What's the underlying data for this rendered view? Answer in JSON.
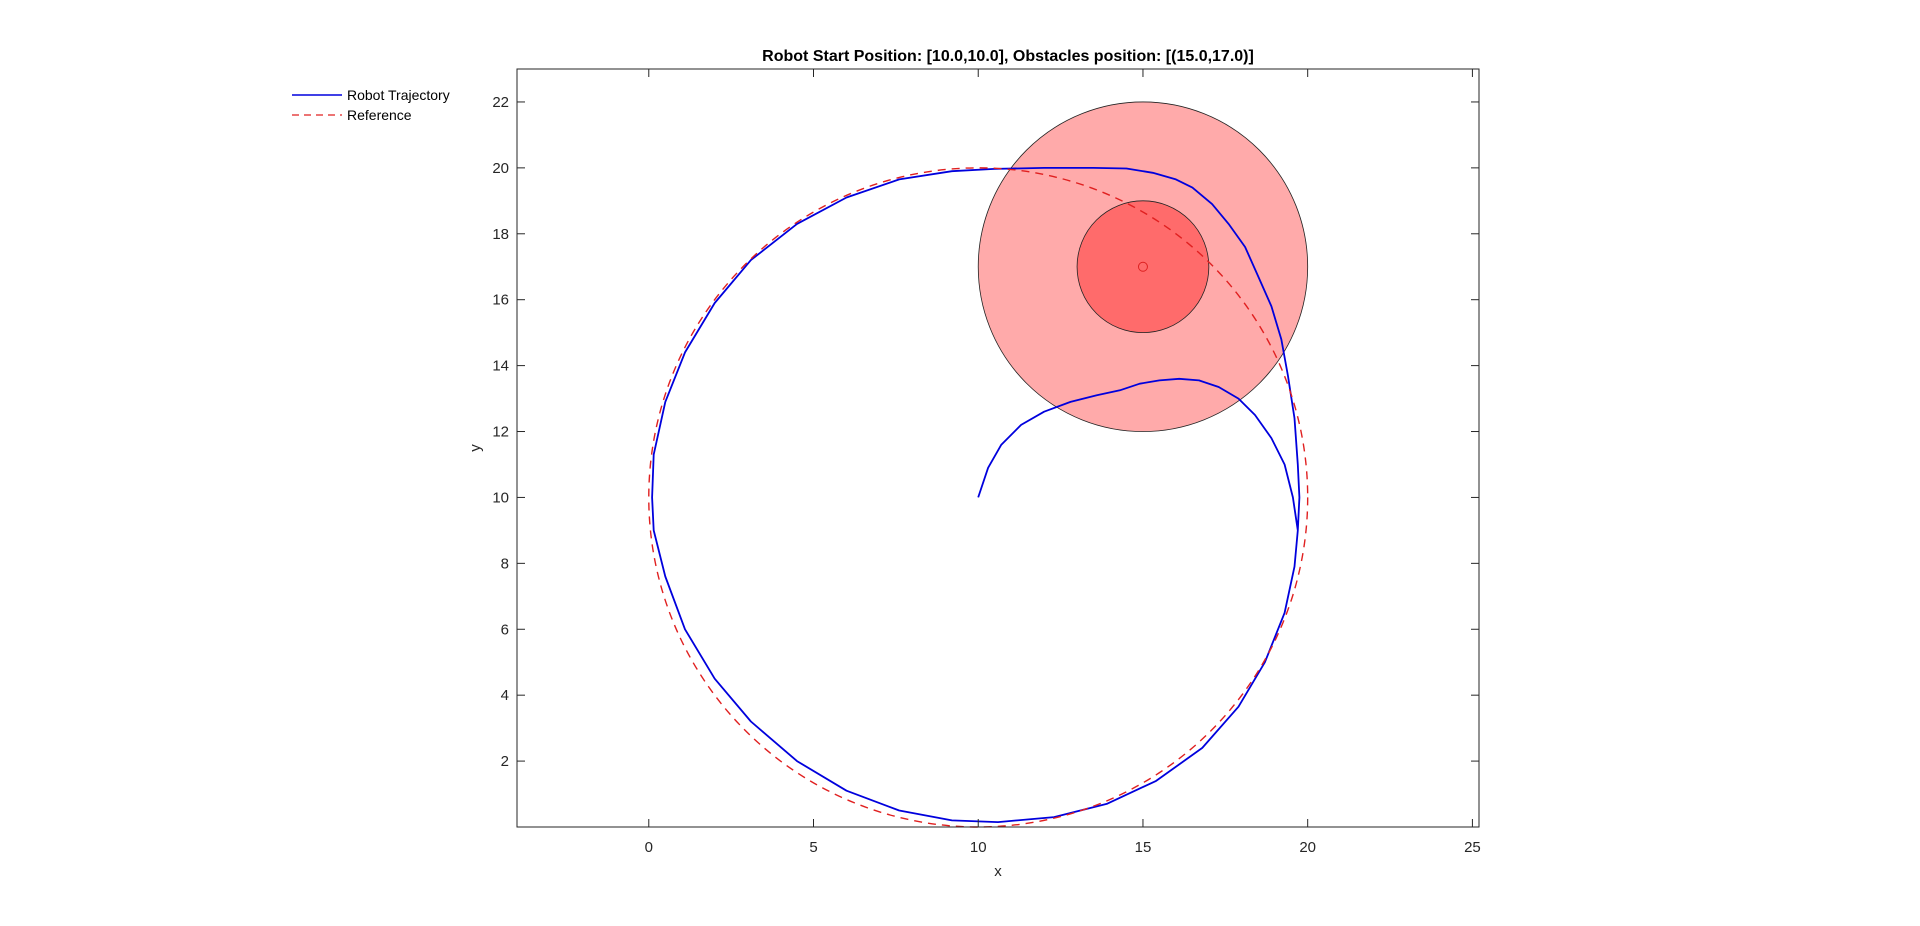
{
  "chart_data": {
    "type": "line",
    "title": "Robot Start Position: [10.0,10.0], Obstacles position: [(15.0,17.0)]",
    "xlabel": "x",
    "ylabel": "y",
    "xlim": [
      -4,
      25.2
    ],
    "ylim": [
      0,
      23
    ],
    "xticks": [
      0,
      5,
      10,
      15,
      20,
      25
    ],
    "yticks": [
      2,
      4,
      6,
      8,
      10,
      12,
      14,
      16,
      18,
      20,
      22
    ],
    "grid": false,
    "legend_position": "outside-top-left",
    "series": [
      {
        "name": "Robot Trajectory",
        "style": "solid",
        "color": "#0000dd",
        "points": [
          [
            10.0,
            10.0
          ],
          [
            10.3,
            10.9
          ],
          [
            10.7,
            11.6
          ],
          [
            11.3,
            12.2
          ],
          [
            12.0,
            12.6
          ],
          [
            12.8,
            12.9
          ],
          [
            13.6,
            13.1
          ],
          [
            14.3,
            13.25
          ],
          [
            14.9,
            13.45
          ],
          [
            15.5,
            13.55
          ],
          [
            16.1,
            13.6
          ],
          [
            16.7,
            13.55
          ],
          [
            17.3,
            13.35
          ],
          [
            17.9,
            13.0
          ],
          [
            18.4,
            12.5
          ],
          [
            18.9,
            11.8
          ],
          [
            19.3,
            11.0
          ],
          [
            19.55,
            10.0
          ],
          [
            19.7,
            9.0
          ],
          [
            19.6,
            7.9
          ],
          [
            19.3,
            6.5
          ],
          [
            18.7,
            5.0
          ],
          [
            17.9,
            3.65
          ],
          [
            16.8,
            2.4
          ],
          [
            15.4,
            1.4
          ],
          [
            13.9,
            0.7
          ],
          [
            12.3,
            0.3
          ],
          [
            10.6,
            0.15
          ],
          [
            9.2,
            0.2
          ],
          [
            7.6,
            0.5
          ],
          [
            6.0,
            1.1
          ],
          [
            4.5,
            2.0
          ],
          [
            3.1,
            3.2
          ],
          [
            2.0,
            4.5
          ],
          [
            1.1,
            6.0
          ],
          [
            0.5,
            7.6
          ],
          [
            0.15,
            9.0
          ],
          [
            0.1,
            10.0
          ],
          [
            0.15,
            11.3
          ],
          [
            0.5,
            12.9
          ],
          [
            1.1,
            14.4
          ],
          [
            2.0,
            15.9
          ],
          [
            3.1,
            17.2
          ],
          [
            4.5,
            18.3
          ],
          [
            6.0,
            19.1
          ],
          [
            7.6,
            19.65
          ],
          [
            9.2,
            19.9
          ],
          [
            10.5,
            19.97
          ],
          [
            12.0,
            20.0
          ],
          [
            13.5,
            20.0
          ],
          [
            14.5,
            19.98
          ],
          [
            15.3,
            19.85
          ],
          [
            16.0,
            19.65
          ],
          [
            16.5,
            19.4
          ],
          [
            17.1,
            18.9
          ],
          [
            17.6,
            18.3
          ],
          [
            18.1,
            17.6
          ],
          [
            18.5,
            16.7
          ],
          [
            18.9,
            15.8
          ],
          [
            19.2,
            14.8
          ],
          [
            19.4,
            13.7
          ],
          [
            19.6,
            12.4
          ],
          [
            19.7,
            11.0
          ],
          [
            19.75,
            10.0
          ],
          [
            19.7,
            9.0
          ]
        ]
      },
      {
        "name": "Reference",
        "style": "dashed",
        "color": "#e02020",
        "center": [
          10,
          10
        ],
        "radius": 10
      }
    ],
    "obstacles": [
      {
        "center": [
          15,
          17
        ],
        "inner_radius": 2,
        "outer_radius": 5,
        "inner_color": "#ff6b6b",
        "outer_color": "#ffaaaa",
        "marker": "circle"
      }
    ]
  }
}
